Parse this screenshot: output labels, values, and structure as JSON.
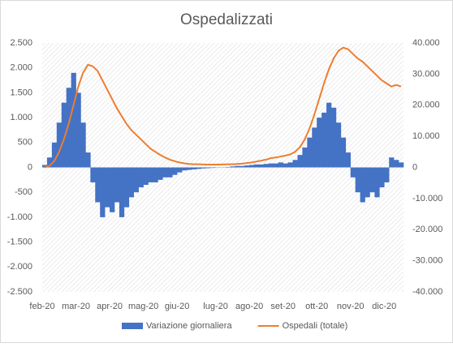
{
  "chart_data": {
    "type": "bar",
    "title": "Ospedalizzati",
    "categories": [
      "feb-20",
      null,
      null,
      null,
      null,
      null,
      null,
      "mar-20",
      null,
      null,
      null,
      null,
      null,
      null,
      "apr-20",
      null,
      null,
      null,
      null,
      null,
      null,
      "mag-20",
      null,
      null,
      null,
      null,
      null,
      null,
      "giu-20",
      null,
      null,
      null,
      null,
      null,
      null,
      null,
      "lug-20",
      null,
      null,
      null,
      null,
      null,
      null,
      "ago-20",
      null,
      null,
      null,
      null,
      null,
      null,
      "set-20",
      null,
      null,
      null,
      null,
      null,
      null,
      "ott-20",
      null,
      null,
      null,
      null,
      null,
      null,
      "nov-20",
      null,
      null,
      null,
      null,
      null,
      null,
      "dic-20",
      null,
      null,
      null
    ],
    "series": [
      {
        "name": "Variazione giornaliera",
        "type": "bar",
        "color": "#4472c4",
        "values": [
          50,
          200,
          500,
          900,
          1300,
          1600,
          1900,
          1500,
          900,
          300,
          -300,
          -700,
          -1000,
          -800,
          -900,
          -700,
          -1000,
          -800,
          -600,
          -500,
          -400,
          -350,
          -300,
          -300,
          -250,
          -200,
          -200,
          -150,
          -100,
          -60,
          -50,
          -40,
          -30,
          -20,
          -15,
          -10,
          -5,
          5,
          10,
          20,
          30,
          30,
          40,
          50,
          60,
          60,
          70,
          80,
          80,
          100,
          80,
          100,
          150,
          250,
          400,
          600,
          800,
          1000,
          1100,
          1300,
          1200,
          900,
          600,
          300,
          -200,
          -500,
          -700,
          -600,
          -500,
          -600,
          -400,
          -300,
          200,
          150,
          100
        ]
      },
      {
        "name": "Ospedali (totale)",
        "type": "line",
        "axis": "y2",
        "color": "#ed7d31",
        "values": [
          0,
          500,
          2000,
          5000,
          9000,
          14000,
          20000,
          26000,
          30500,
          33000,
          32500,
          31000,
          28000,
          25000,
          22000,
          19000,
          16500,
          14000,
          12000,
          10500,
          9000,
          7500,
          6000,
          5000,
          4000,
          3200,
          2500,
          2000,
          1600,
          1300,
          1100,
          1000,
          1000,
          950,
          900,
          900,
          900,
          950,
          1000,
          1000,
          1100,
          1200,
          1400,
          1600,
          1900,
          2200,
          2500,
          3000,
          3200,
          3500,
          3800,
          4200,
          5000,
          6500,
          9000,
          12500,
          17000,
          22000,
          27000,
          31500,
          35000,
          37500,
          38500,
          38000,
          36500,
          35000,
          34000,
          32500,
          31000,
          29500,
          28000,
          27000,
          26000,
          26500,
          26000
        ]
      }
    ],
    "ylim": [
      -2500,
      2500
    ],
    "yticks": [
      {
        "value": -2500,
        "label": "-2.500"
      },
      {
        "value": -2000,
        "label": "-2.000"
      },
      {
        "value": -1500,
        "label": "-1.500"
      },
      {
        "value": -1000,
        "label": "-1.000"
      },
      -500,
      0,
      500,
      {
        "value": 1000,
        "label": "1.000"
      },
      {
        "value": 1500,
        "label": "1.500"
      },
      {
        "value": 2000,
        "label": "2.000"
      },
      {
        "value": 2500,
        "label": "2.500"
      }
    ],
    "y2lim": [
      -40000,
      40000
    ],
    "y2ticks": [
      {
        "value": -40000,
        "label": "-40.000"
      },
      {
        "value": -30000,
        "label": "-30.000"
      },
      {
        "value": -20000,
        "label": "-20.000"
      },
      {
        "value": -10000,
        "label": "-10.000"
      },
      0,
      {
        "value": 10000,
        "label": "10.000"
      },
      {
        "value": 20000,
        "label": "20.000"
      },
      {
        "value": 30000,
        "label": "30.000"
      },
      {
        "value": 40000,
        "label": "40.000"
      }
    ],
    "legend": "bottom"
  }
}
